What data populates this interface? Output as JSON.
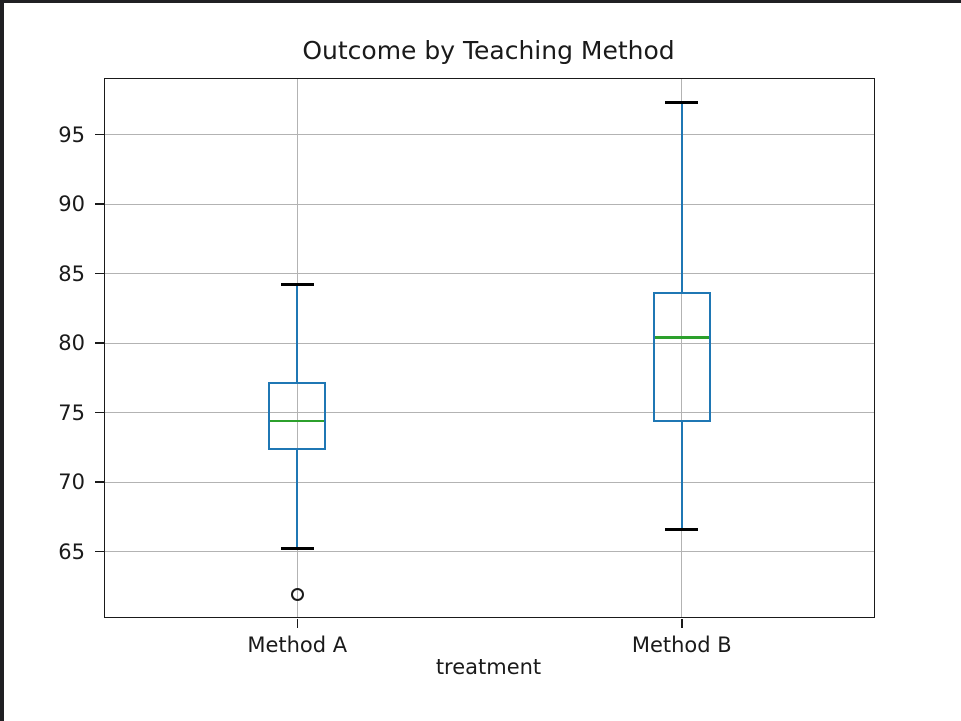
{
  "page": {
    "background": "#ffffff",
    "window_edge_color": "#202023"
  },
  "chart_data": {
    "type": "boxplot",
    "title": "Outcome by Teaching Method",
    "xlabel": "treatment",
    "ylabel": "",
    "categories": [
      "Method A",
      "Method B"
    ],
    "yticks": [
      65,
      70,
      75,
      80,
      85,
      90,
      95
    ],
    "ylim": [
      60.3,
      99.0
    ],
    "grid": true,
    "legend": false,
    "series": [
      {
        "name": "Method A",
        "whisker_low": 65.2,
        "q1": 72.3,
        "median": 74.4,
        "q3": 77.2,
        "whisker_high": 84.2,
        "outliers": [
          61.9
        ]
      },
      {
        "name": "Method B",
        "whisker_low": 66.6,
        "q1": 74.3,
        "median": 80.4,
        "q3": 83.7,
        "whisker_high": 97.3,
        "outliers": []
      }
    ],
    "colors": {
      "box": "#1f77b4",
      "median": "#2ca02c",
      "cap": "#000000",
      "grid": "#b3b3b3",
      "spine": "#1a1a1a",
      "text": "#1a1a1a"
    }
  }
}
